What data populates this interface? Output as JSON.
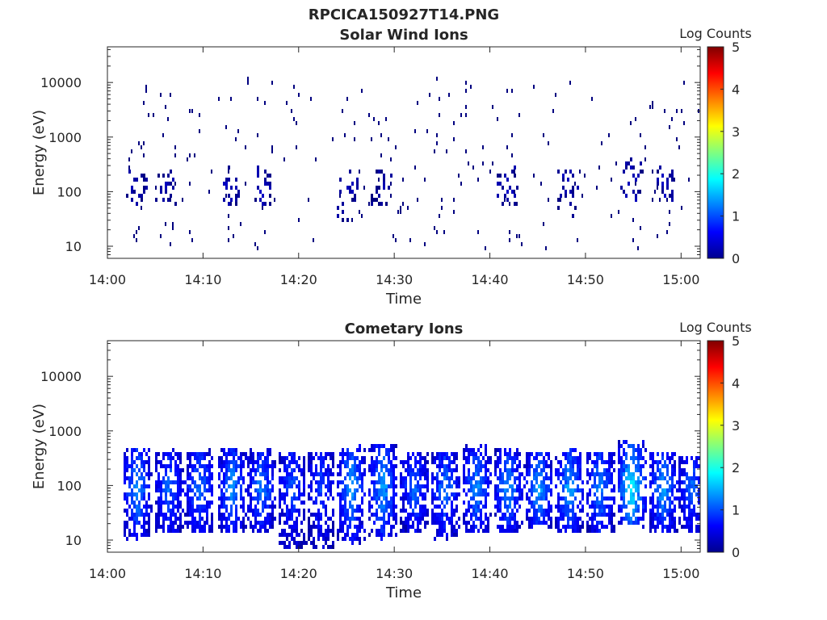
{
  "figure": {
    "title": "RPCICA150927T14.PNG"
  },
  "chart_data": [
    {
      "type": "heatmap",
      "title": "Solar Wind Ions",
      "xlabel": "Time",
      "ylabel": "Energy (eV)",
      "y_scale": "log",
      "xlim": [
        "14:00",
        "15:02"
      ],
      "ylim": [
        6,
        45000
      ],
      "x_ticks": [
        "14:00",
        "14:10",
        "14:20",
        "14:30",
        "14:40",
        "14:50",
        "15:00"
      ],
      "y_ticks": [
        "10",
        "100",
        "1000",
        "10000"
      ],
      "colorbar": {
        "label": "Log Counts",
        "range": [
          0,
          5
        ],
        "ticks": [
          "0",
          "1",
          "2",
          "3",
          "4",
          "5"
        ],
        "colormap": "jet"
      },
      "grid": false,
      "description_of_data": "sparse scattered low-count (log ~0) pixels across all energies",
      "clusters": [
        {
          "t": "14:02.9",
          "e_low": 60,
          "e_high": 300,
          "max_log": 0.3
        },
        {
          "t": "14:06.0",
          "e_low": 50,
          "e_high": 250,
          "max_log": 0.2
        },
        {
          "t": "14:12.9",
          "e_low": 60,
          "e_high": 300,
          "max_log": 0.3
        },
        {
          "t": "14:16.0",
          "e_low": 60,
          "e_high": 300,
          "max_log": 0.3
        },
        {
          "t": "14:25.0",
          "e_low": 30,
          "e_high": 300,
          "max_log": 0.3
        },
        {
          "t": "14:28.5",
          "e_low": 60,
          "e_high": 300,
          "max_log": 0.2
        },
        {
          "t": "14:41.7",
          "e_low": 60,
          "e_high": 300,
          "max_log": 0.3
        },
        {
          "t": "14:48.0",
          "e_low": 40,
          "e_high": 300,
          "max_log": 0.3
        },
        {
          "t": "14:54.6",
          "e_low": 80,
          "e_high": 400,
          "max_log": 0.4
        },
        {
          "t": "14:58.2",
          "e_low": 80,
          "e_high": 300,
          "max_log": 0.3
        }
      ]
    },
    {
      "type": "heatmap",
      "title": "Cometary Ions",
      "xlabel": "Time",
      "ylabel": "Energy (eV)",
      "y_scale": "log",
      "xlim": [
        "14:00",
        "15:02"
      ],
      "ylim": [
        6,
        45000
      ],
      "x_ticks": [
        "14:00",
        "14:10",
        "14:20",
        "14:30",
        "14:40",
        "14:50",
        "15:00"
      ],
      "y_ticks": [
        "10",
        "100",
        "1000",
        "10000"
      ],
      "colorbar": {
        "label": "Log Counts",
        "range": [
          0,
          5
        ],
        "ticks": [
          "0",
          "1",
          "2",
          "3",
          "4",
          "5"
        ],
        "colormap": "jet"
      },
      "grid": false,
      "description_of_data": "periodic bursts of cometary ions between ~10 and ~700 eV, peaking near 100 eV",
      "clusters": [
        {
          "t": "14:03.0",
          "e_low": 12,
          "e_high": 500,
          "max_log": 1.4
        },
        {
          "t": "14:06.3",
          "e_low": 15,
          "e_high": 450,
          "max_log": 1.2
        },
        {
          "t": "14:09.5",
          "e_low": 15,
          "e_high": 450,
          "max_log": 1.3
        },
        {
          "t": "14:12.9",
          "e_low": 15,
          "e_high": 500,
          "max_log": 1.4
        },
        {
          "t": "14:16.0",
          "e_low": 15,
          "e_high": 450,
          "max_log": 1.3
        },
        {
          "t": "14:19.2",
          "e_low": 8,
          "e_high": 400,
          "max_log": 1.1
        },
        {
          "t": "14:22.2",
          "e_low": 7,
          "e_high": 450,
          "max_log": 1.0
        },
        {
          "t": "14:25.4",
          "e_low": 10,
          "e_high": 550,
          "max_log": 1.5
        },
        {
          "t": "14:28.7",
          "e_low": 12,
          "e_high": 600,
          "max_log": 1.5
        },
        {
          "t": "14:32.0",
          "e_low": 15,
          "e_high": 400,
          "max_log": 1.2
        },
        {
          "t": "14:35.2",
          "e_low": 12,
          "e_high": 450,
          "max_log": 1.3
        },
        {
          "t": "14:38.5",
          "e_low": 15,
          "e_high": 550,
          "max_log": 1.4
        },
        {
          "t": "14:41.8",
          "e_low": 15,
          "e_high": 500,
          "max_log": 1.4
        },
        {
          "t": "14:45.0",
          "e_low": 20,
          "e_high": 450,
          "max_log": 1.5
        },
        {
          "t": "14:48.2",
          "e_low": 15,
          "e_high": 500,
          "max_log": 1.5
        },
        {
          "t": "14:51.4",
          "e_low": 15,
          "e_high": 450,
          "max_log": 1.4
        },
        {
          "t": "14:54.7",
          "e_low": 20,
          "e_high": 700,
          "max_log": 1.9
        },
        {
          "t": "14:58.0",
          "e_low": 15,
          "e_high": 450,
          "max_log": 1.5
        },
        {
          "t": "15:01.0",
          "e_low": 15,
          "e_high": 350,
          "max_log": 1.2
        }
      ]
    }
  ]
}
